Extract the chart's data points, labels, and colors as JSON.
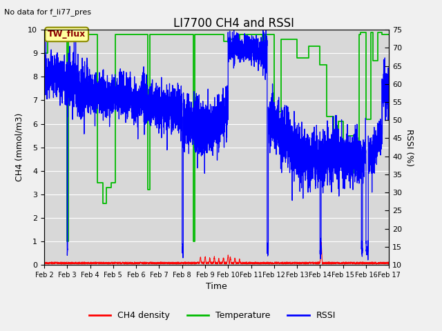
{
  "title": "LI7700 CH4 and RSSI",
  "top_left_text": "No data for f_li77_pres",
  "annotation_box": "TW_flux",
  "xlabel": "Time",
  "ylabel_left": "CH4 (mmol/m3)",
  "ylabel_right": "RSSI (%)",
  "ylim_left": [
    0.0,
    10.0
  ],
  "ylim_right": [
    10,
    75
  ],
  "yticks_left": [
    0.0,
    1.0,
    2.0,
    3.0,
    4.0,
    5.0,
    6.0,
    7.0,
    8.0,
    9.0,
    10.0
  ],
  "yticks_right": [
    10,
    15,
    20,
    25,
    30,
    35,
    40,
    45,
    50,
    55,
    60,
    65,
    70,
    75
  ],
  "xtick_labels": [
    "Feb 2",
    "Feb 3",
    "Feb 4",
    "Feb 5",
    "Feb 6",
    "Feb 7",
    "Feb 8",
    "Feb 9",
    "Feb 10",
    "Feb 11",
    "Feb 12",
    "Feb 13",
    "Feb 14",
    "Feb 15",
    "Feb 16",
    "Feb 17"
  ],
  "legend_labels": [
    "CH4 density",
    "Temperature",
    "RSSI"
  ],
  "legend_colors": [
    "#ff0000",
    "#00bb00",
    "#0000ff"
  ],
  "plot_bg": "#d8d8d8",
  "fig_bg": "#f0f0f0",
  "grid_color": "#ffffff",
  "title_fontsize": 12,
  "label_fontsize": 9,
  "tick_fontsize": 8,
  "note_fontsize": 8,
  "annot_fontsize": 9
}
